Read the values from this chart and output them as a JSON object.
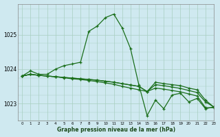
{
  "title": "Graphe pression niveau de la mer (hPa)",
  "background_color": "#cfe9f0",
  "grid_color": "#a8cfc0",
  "line_color": "#1a6e1a",
  "xlim": [
    -0.5,
    23
  ],
  "ylim": [
    1022.6,
    1025.9
  ],
  "yticks": [
    1023,
    1024,
    1025
  ],
  "xticks": [
    0,
    1,
    2,
    3,
    4,
    5,
    6,
    7,
    8,
    9,
    10,
    11,
    12,
    13,
    14,
    15,
    16,
    17,
    18,
    19,
    20,
    21,
    22,
    23
  ],
  "series": [
    [
      1023.8,
      1023.95,
      1023.85,
      1023.85,
      1024.0,
      1024.1,
      1024.15,
      1024.2,
      1025.1,
      1025.25,
      1025.5,
      1025.6,
      1025.2,
      1024.6,
      1023.55,
      1022.65,
      1023.1,
      1022.85,
      1023.25,
      1023.3,
      1023.05,
      1023.15,
      1022.85,
      1022.9
    ],
    [
      1023.8,
      1023.85,
      1023.82,
      1023.8,
      1023.78,
      1023.76,
      1023.74,
      1023.72,
      1023.7,
      1023.68,
      1023.65,
      1023.62,
      1023.58,
      1023.54,
      1023.5,
      1023.35,
      1023.62,
      1023.58,
      1023.55,
      1023.52,
      1023.45,
      1023.4,
      1023.1,
      1022.9
    ],
    [
      1023.8,
      1023.85,
      1023.82,
      1023.8,
      1023.78,
      1023.76,
      1023.74,
      1023.72,
      1023.7,
      1023.68,
      1023.65,
      1023.62,
      1023.58,
      1023.54,
      1023.5,
      1023.35,
      1023.55,
      1023.52,
      1023.48,
      1023.44,
      1023.38,
      1023.32,
      1023.05,
      1022.9
    ],
    [
      1023.8,
      1023.85,
      1023.82,
      1023.8,
      1023.78,
      1023.75,
      1023.72,
      1023.7,
      1023.67,
      1023.64,
      1023.6,
      1023.56,
      1023.5,
      1023.45,
      1023.4,
      1023.35,
      1023.45,
      1023.42,
      1023.38,
      1023.34,
      1023.28,
      1023.22,
      1022.88,
      1022.88
    ]
  ]
}
